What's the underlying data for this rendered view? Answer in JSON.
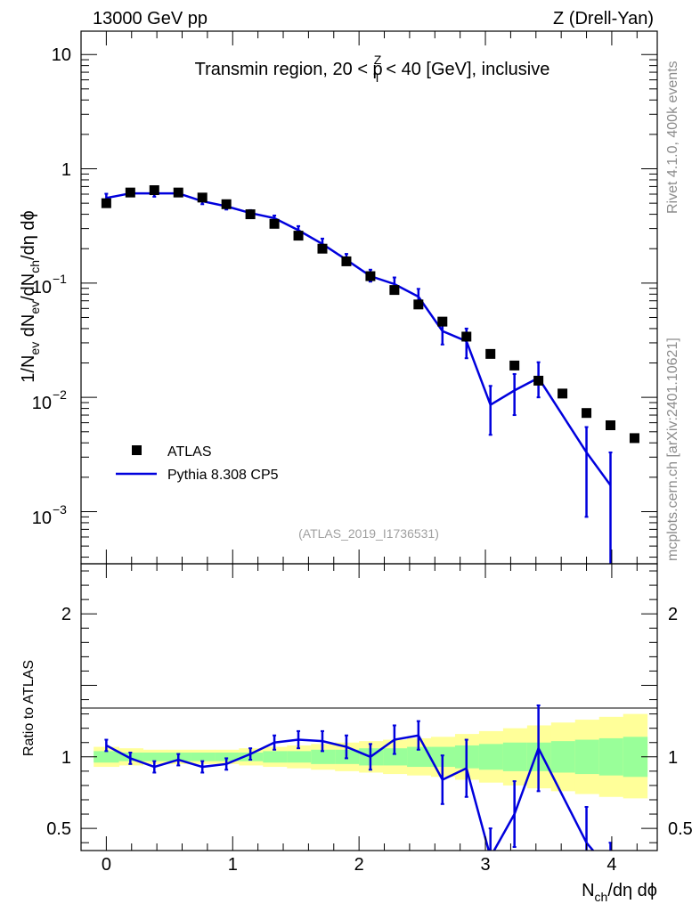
{
  "header": {
    "left": "13000 GeV pp",
    "right": "Z (Drell-Yan)"
  },
  "side_text": {
    "top": "Rivet 4.1.0,  400k events",
    "bottom": "mcplots.cern.ch [arXiv:2401.10621]"
  },
  "analysis_tag": "(ATLAS_2019_I1736531)",
  "chart_data": [
    {
      "type": "scatter",
      "panel": "main",
      "title": "Transmin region, 20 < pT^Z < 40 [GeV], inclusive",
      "title_parts": {
        "pre": "Transmin region, 20 < p",
        "sub": "T",
        "sup": "Z",
        "post": " < 40 [GeV], inclusive"
      },
      "ylabel": "1/N_ev dN_ev/dN_ch/dη dϕ",
      "ylabel_parts": {
        "a": "1/N",
        "a_sub": "ev",
        "b": " dN",
        "b_sub": "ev",
        "c": "/dN",
        "c_sub": "ch",
        "d": "/dη dϕ"
      },
      "yscale": "log",
      "ylim": [
        0.00035,
        16
      ],
      "xlim": [
        -0.2,
        4.36
      ],
      "ytick_labels": {
        "t10": "10",
        "t1": "1",
        "t01": {
          "base": "10",
          "exp": "−1"
        },
        "t001": {
          "base": "10",
          "exp": "−2"
        },
        "t0001": {
          "base": "10",
          "exp": "−3"
        }
      },
      "legend": {
        "position": "lower-left",
        "atlas": "ATLAS",
        "pythia": "Pythia 8.308 CP5"
      },
      "series": [
        {
          "name": "ATLAS",
          "style": "black-square-markers",
          "x": [
            0.0,
            0.19,
            0.38,
            0.57,
            0.76,
            0.95,
            1.14,
            1.33,
            1.52,
            1.71,
            1.9,
            2.09,
            2.28,
            2.47,
            2.66,
            2.85,
            3.04,
            3.23,
            3.42,
            3.61,
            3.8,
            3.99,
            4.18
          ],
          "values": [
            0.5,
            0.62,
            0.65,
            0.62,
            0.56,
            0.49,
            0.4,
            0.33,
            0.26,
            0.2,
            0.155,
            0.115,
            0.087,
            0.065,
            0.046,
            0.034,
            0.024,
            0.019,
            0.014,
            0.0108,
            0.0073,
            0.0057,
            0.0044
          ]
        },
        {
          "name": "Pythia 8.308 CP5",
          "style": "blue-line-with-error-bars",
          "color": "#0000dd",
          "x": [
            0.0,
            0.19,
            0.38,
            0.57,
            0.76,
            0.95,
            1.14,
            1.33,
            1.52,
            1.71,
            1.9,
            2.09,
            2.28,
            2.47,
            2.66,
            2.85,
            3.04,
            3.23,
            3.42,
            3.8,
            3.99
          ],
          "values": [
            0.555,
            0.61,
            0.61,
            0.61,
            0.52,
            0.47,
            0.41,
            0.37,
            0.29,
            0.22,
            0.16,
            0.115,
            0.098,
            0.076,
            0.038,
            0.031,
            0.0086,
            0.0115,
            0.0148,
            0.0033,
            0.0017
          ],
          "err_low": [
            0.05,
            0.03,
            0.04,
            0.03,
            0.03,
            0.03,
            0.025,
            0.02,
            0.02,
            0.02,
            0.015,
            0.012,
            0.01,
            0.01,
            0.009,
            0.009,
            0.0039,
            0.0045,
            0.0048,
            0.0024,
            0.0017
          ],
          "err_high": [
            0.05,
            0.03,
            0.04,
            0.03,
            0.03,
            0.03,
            0.025,
            0.02,
            0.025,
            0.025,
            0.02,
            0.016,
            0.014,
            0.013,
            0.009,
            0.009,
            0.004,
            0.0045,
            0.0055,
            0.0022,
            0.0016
          ]
        }
      ]
    },
    {
      "type": "line",
      "panel": "ratio",
      "ylabel": "Ratio to ATLAS",
      "xlabel": "N_ch/dη dϕ",
      "xlabel_parts": {
        "a": "N",
        "a_sub": "ch",
        "b": "/dη dϕ"
      },
      "ylim": [
        0.345,
        2.35
      ],
      "xlim": [
        -0.2,
        4.36
      ],
      "xticks": [
        {
          "v": 0,
          "label": "0"
        },
        {
          "v": 1,
          "label": "1"
        },
        {
          "v": 2,
          "label": "2"
        },
        {
          "v": 3,
          "label": "3"
        },
        {
          "v": 4,
          "label": "4"
        }
      ],
      "yticks": [
        {
          "v": 0.5,
          "label": "0.5"
        },
        {
          "v": 1,
          "label": "1"
        },
        {
          "v": 2,
          "label": "2"
        }
      ],
      "bands": {
        "x": [
          -0.1,
          0.1,
          0.29,
          0.48,
          0.67,
          0.86,
          1.05,
          1.24,
          1.43,
          1.62,
          1.81,
          2.0,
          2.19,
          2.38,
          2.57,
          2.76,
          2.95,
          3.14,
          3.33,
          3.52,
          3.71,
          3.9,
          4.09,
          4.28
        ],
        "yellow_low": [
          0.93,
          0.94,
          0.95,
          0.95,
          0.95,
          0.95,
          0.94,
          0.93,
          0.92,
          0.91,
          0.9,
          0.89,
          0.88,
          0.87,
          0.86,
          0.84,
          0.82,
          0.8,
          0.78,
          0.76,
          0.74,
          0.72,
          0.71
        ],
        "yellow_high": [
          1.07,
          1.06,
          1.05,
          1.05,
          1.05,
          1.05,
          1.06,
          1.07,
          1.08,
          1.09,
          1.1,
          1.11,
          1.12,
          1.13,
          1.14,
          1.16,
          1.18,
          1.2,
          1.22,
          1.24,
          1.26,
          1.28,
          1.3
        ],
        "green_low": [
          0.96,
          0.97,
          0.97,
          0.97,
          0.97,
          0.97,
          0.97,
          0.96,
          0.96,
          0.95,
          0.95,
          0.94,
          0.94,
          0.93,
          0.93,
          0.92,
          0.91,
          0.9,
          0.9,
          0.89,
          0.88,
          0.87,
          0.86
        ],
        "green_high": [
          1.04,
          1.03,
          1.03,
          1.03,
          1.03,
          1.03,
          1.03,
          1.04,
          1.04,
          1.05,
          1.05,
          1.06,
          1.06,
          1.07,
          1.07,
          1.08,
          1.09,
          1.1,
          1.1,
          1.11,
          1.12,
          1.13,
          1.14
        ]
      },
      "series": [
        {
          "name": "Pythia 8.308 CP5 / ATLAS",
          "color": "#0000dd",
          "x": [
            0.0,
            0.19,
            0.38,
            0.57,
            0.76,
            0.95,
            1.14,
            1.33,
            1.52,
            1.71,
            1.9,
            2.09,
            2.28,
            2.47,
            2.66,
            2.85,
            3.04,
            3.23,
            3.42,
            3.8,
            3.99
          ],
          "values": [
            1.08,
            0.99,
            0.93,
            0.98,
            0.93,
            0.95,
            1.02,
            1.1,
            1.12,
            1.11,
            1.07,
            1.0,
            1.12,
            1.15,
            0.84,
            0.92,
            0.3,
            0.6,
            1.06,
            0.4,
            0.2
          ],
          "err_low": [
            0.04,
            0.04,
            0.04,
            0.04,
            0.04,
            0.04,
            0.04,
            0.05,
            0.06,
            0.07,
            0.08,
            0.09,
            0.1,
            0.1,
            0.17,
            0.2,
            0.2,
            0.23,
            0.3,
            0.25,
            0.2
          ],
          "err_high": [
            0.04,
            0.04,
            0.04,
            0.04,
            0.04,
            0.04,
            0.04,
            0.05,
            0.06,
            0.07,
            0.08,
            0.09,
            0.1,
            0.1,
            0.17,
            0.2,
            0.2,
            0.23,
            0.3,
            0.25,
            0.2
          ]
        }
      ]
    }
  ]
}
